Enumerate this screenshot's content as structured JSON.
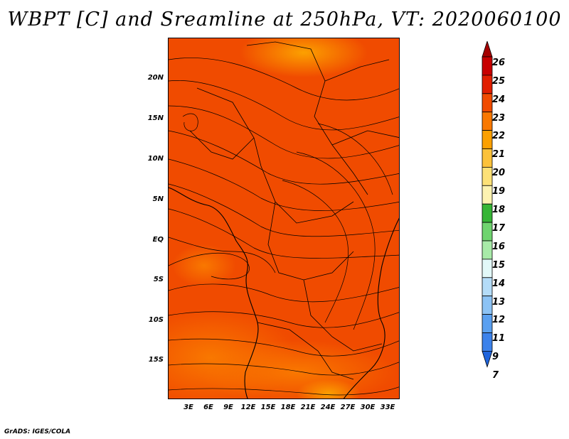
{
  "title": "WBPT [C] and Sreamline at 250hPa, VT: 2020060100",
  "footer": "GrADS: IGES/COLA",
  "lat_labels": [
    "20N",
    "15N",
    "10N",
    "5N",
    "EQ",
    "5S",
    "10S",
    "15S"
  ],
  "lon_labels": [
    "3E",
    "6E",
    "9E",
    "12E",
    "15E",
    "18E",
    "21E",
    "24E",
    "27E",
    "30E",
    "33E"
  ],
  "colorbar": {
    "levels": [
      "26",
      "25",
      "24",
      "23",
      "22",
      "21",
      "20",
      "19",
      "18",
      "17",
      "16",
      "15",
      "14",
      "13",
      "12",
      "11",
      "9",
      "7"
    ],
    "colors": [
      "#a50000",
      "#c80000",
      "#e11e00",
      "#f04b00",
      "#f97800",
      "#fca000",
      "#fcc23b",
      "#fde177",
      "#fdf3b1",
      "#36b536",
      "#6fd46f",
      "#a8eaa8",
      "#e2f8f8",
      "#b4dcf8",
      "#8cc3f5",
      "#5aa0f0",
      "#3c82eb",
      "#1f64dc"
    ]
  },
  "map": {
    "dominant_color": "#f04b00",
    "warm_color": "#f97800",
    "cool_color": "#e11e00",
    "line_color": "#000000"
  }
}
